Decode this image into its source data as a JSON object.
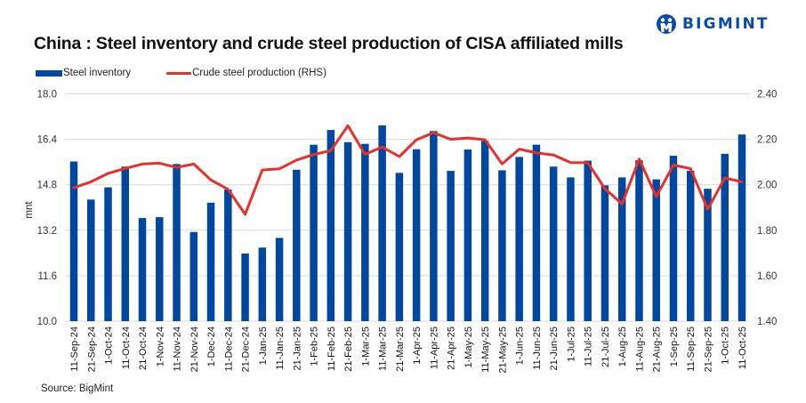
{
  "header": {
    "brand": "BIGMINT",
    "logo_icon": "bigmint-logo-icon",
    "title": "China : Steel inventory and crude steel production of CISA affiliated mills"
  },
  "source": "Source: BigMint",
  "colors": {
    "bar": "#0047a0",
    "line": "#e8302a",
    "grid": "#d9d9d9",
    "brand": "#0a4aa8"
  },
  "chart_data": {
    "type": "bar",
    "title": "China : Steel inventory and crude steel production of CISA affiliated mills",
    "xlabel": "",
    "ylabel": "mnt",
    "y2label": "",
    "ylim": [
      10.0,
      18.0
    ],
    "y2lim": [
      1.4,
      2.4
    ],
    "yticks": [
      "10.0",
      "11.6",
      "13.2",
      "14.8",
      "16.4",
      "18.0"
    ],
    "y2ticks": [
      "1.40",
      "1.60",
      "1.80",
      "2.00",
      "2.20",
      "2.40"
    ],
    "grid": true,
    "legend_position": "top-left",
    "categories": [
      "11-Sep-24",
      "21-Sep-24",
      "1-Oct-24",
      "11-Oct-24",
      "21-Oct-24",
      "1-Nov-24",
      "11-Nov-24",
      "21-Nov-24",
      "1-Dec-24",
      "11-Dec-24",
      "21-Dec-24",
      "1-Jan-25",
      "11-Jan-25",
      "21-Jan-25",
      "1-Feb-25",
      "11-Feb-25",
      "21-Feb-25",
      "1-Mar-25",
      "11-Mar-25",
      "21-Mar-25",
      "1-Apr-25",
      "11-Apr-25",
      "21-Apr-25",
      "1-May-25",
      "11-May-25",
      "21-May-25",
      "1-Jun-25",
      "11-Jun-25",
      "21-Jun-25",
      "1-Jul-25",
      "11-Jul-25",
      "21-Jul-25",
      "1-Aug-25",
      "11-Aug-25",
      "21-Aug-25",
      "1-Sep-25",
      "11-Sep-25",
      "21-Sep-25",
      "1-Oct-25",
      "11-Oct-25"
    ],
    "series": [
      {
        "name": "Steel inventory",
        "type": "bar",
        "axis": "left",
        "values": [
          15.62,
          14.28,
          14.71,
          15.44,
          13.63,
          13.66,
          15.53,
          13.14,
          14.17,
          14.63,
          12.38,
          12.59,
          12.93,
          15.33,
          16.21,
          16.73,
          16.3,
          16.24,
          16.89,
          15.22,
          16.05,
          16.69,
          15.29,
          16.04,
          16.34,
          15.31,
          15.78,
          16.21,
          15.44,
          15.06,
          15.65,
          14.78,
          15.06,
          15.66,
          14.99,
          15.82,
          15.29,
          14.66,
          15.89,
          16.57
        ]
      },
      {
        "name": "Crude steel production (RHS)",
        "type": "line",
        "axis": "right",
        "values": [
          1.987,
          2.013,
          2.05,
          2.072,
          2.091,
          2.095,
          2.076,
          2.091,
          2.021,
          1.98,
          1.87,
          2.065,
          2.07,
          2.109,
          2.133,
          2.15,
          2.26,
          2.134,
          2.166,
          2.124,
          2.198,
          2.229,
          2.2,
          2.206,
          2.198,
          2.092,
          2.157,
          2.14,
          2.131,
          2.098,
          2.097,
          1.983,
          1.916,
          2.113,
          1.948,
          2.087,
          2.071,
          1.892,
          2.03,
          2.013
        ]
      }
    ]
  }
}
